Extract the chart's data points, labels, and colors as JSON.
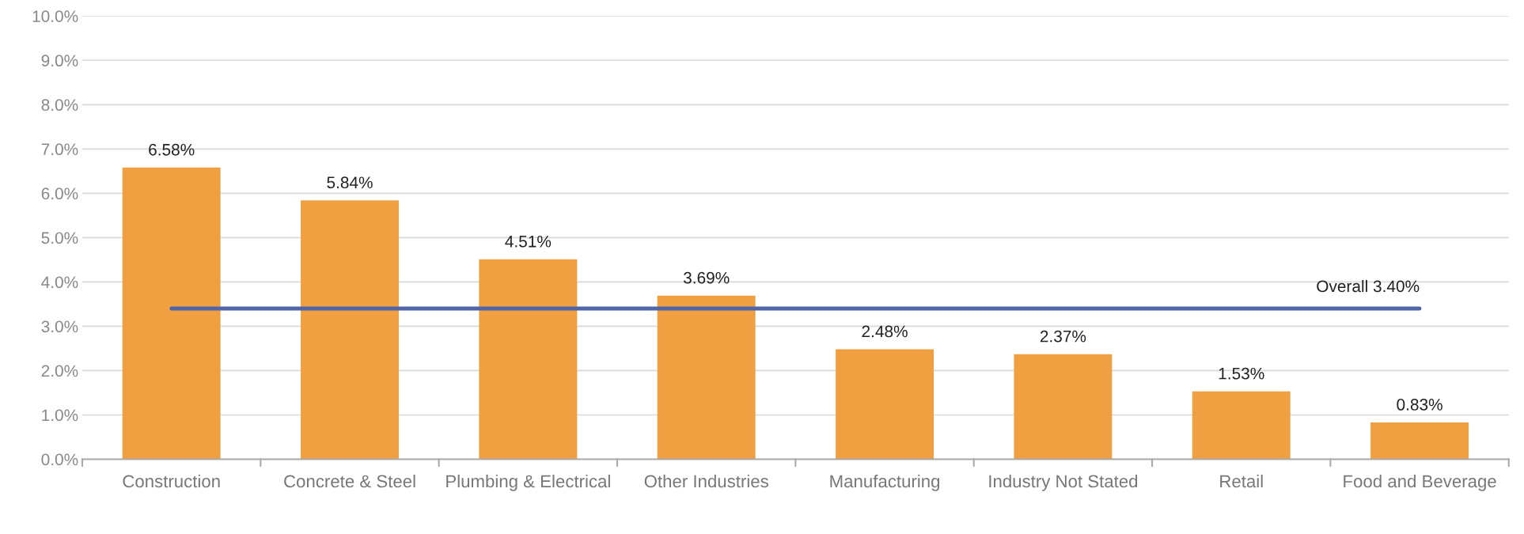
{
  "chart_data": {
    "type": "bar",
    "categories": [
      "Construction",
      "Concrete & Steel",
      "Plumbing & Electrical",
      "Other Industries",
      "Manufacturing",
      "Industry Not Stated",
      "Retail",
      "Food and Beverage"
    ],
    "series": [
      {
        "color": "#f0a040",
        "values": [
          6.58,
          5.84,
          4.51,
          3.69,
          2.48,
          2.37,
          1.53,
          0.83
        ],
        "value_labels": [
          "6.58%",
          "5.84%",
          "4.51%",
          "3.69%",
          "2.48%",
          "2.37%",
          "1.53%",
          "0.83%"
        ]
      },
      {
        "type": "line",
        "name": "Overall 3.40%",
        "color": "#5065a8",
        "values": [
          3.4,
          3.4,
          3.4,
          3.4,
          3.4,
          3.4,
          3.4,
          3.4
        ]
      }
    ],
    "ylim": [
      0,
      10
    ],
    "yticks": [
      {
        "value": 0,
        "label": "0.0%"
      },
      {
        "value": 1,
        "label": "1.0%"
      },
      {
        "value": 2,
        "label": "2.0%"
      },
      {
        "value": 3,
        "label": "3.0%"
      },
      {
        "value": 4,
        "label": "4.0%"
      },
      {
        "value": 5,
        "label": "5.0%"
      },
      {
        "value": 6,
        "label": "6.0%"
      },
      {
        "value": 7,
        "label": "7.0%"
      },
      {
        "value": 8,
        "label": "8.0%"
      },
      {
        "value": 9,
        "label": "9.0%"
      },
      {
        "value": 10,
        "label": "10.0%"
      }
    ],
    "grid": "y",
    "marker": "none",
    "legend": false
  }
}
